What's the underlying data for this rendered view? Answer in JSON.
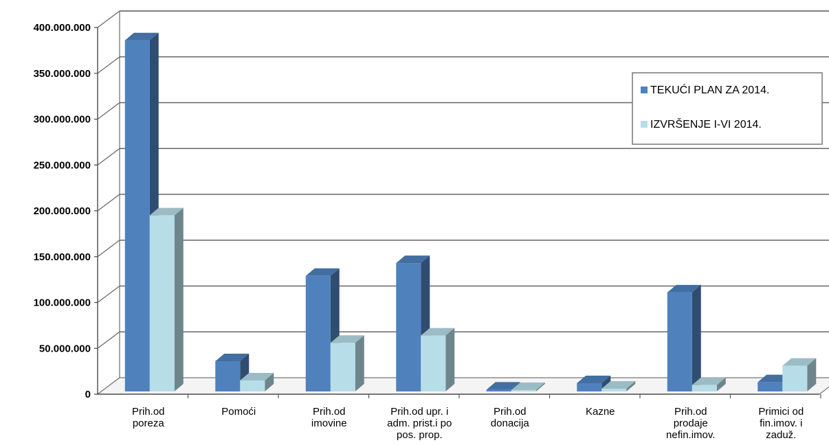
{
  "chart_data": {
    "type": "bar",
    "title": "",
    "xlabel": "",
    "ylabel": "",
    "ylim": [
      0,
      400000000
    ],
    "yticks": [
      0,
      50000000,
      100000000,
      150000000,
      200000000,
      250000000,
      300000000,
      350000000,
      400000000
    ],
    "ytick_labels": [
      "0",
      "50.000.000",
      "100.000.000",
      "150.000.000",
      "200.000.000",
      "250.000.000",
      "300.000.000",
      "350.000.000",
      "400.000.000"
    ],
    "grid": true,
    "legend_position": "right",
    "categories": [
      [
        "Prih.od",
        "poreza"
      ],
      [
        "Pomoći"
      ],
      [
        "Prih.od",
        "imovine"
      ],
      [
        "Prih.od upr. i",
        "adm. prist.i po",
        "pos. prop."
      ],
      [
        "Prih.od",
        "donacija"
      ],
      [
        "Kazne"
      ],
      [
        "Prih.od",
        "prodaje",
        "nefin.imov."
      ],
      [
        "Primici od",
        "fin.imov. i",
        "zaduž."
      ]
    ],
    "series": [
      {
        "name": "TEKUĆI PLAN ZA 2014.",
        "color": "#4F81BD",
        "values": [
          383000000,
          33000000,
          126000000,
          140000000,
          2000000,
          9000000,
          108000000,
          10000000
        ]
      },
      {
        "name": "IZVRŠENJE I-VI 2014.",
        "color": "#B7DDE8",
        "values": [
          192000000,
          12000000,
          53000000,
          61000000,
          1000000,
          3000000,
          7000000,
          28000000
        ]
      }
    ]
  }
}
